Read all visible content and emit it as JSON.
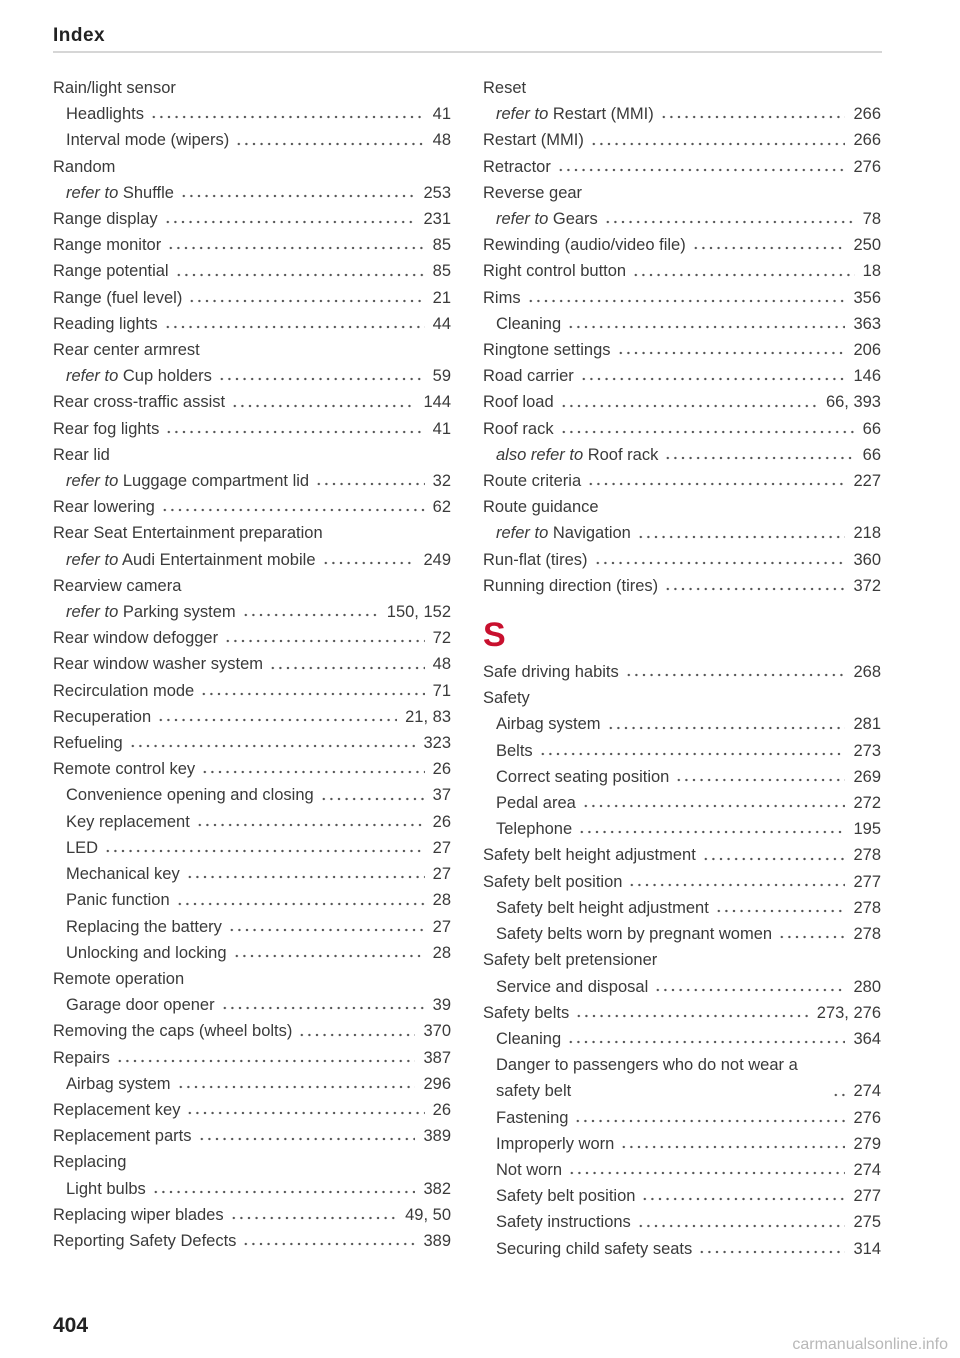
{
  "header": {
    "title": "Index"
  },
  "columns": [
    {
      "sections": [
        {
          "entries": [
            {
              "term": "Rain/light sensor",
              "subentries": [
                {
                  "term": "Headlights",
                  "page": "41"
                },
                {
                  "term": "Interval mode (wipers)",
                  "page": "48"
                }
              ]
            },
            {
              "term": "Random",
              "subentries": [
                {
                  "prefix": "refer to",
                  "term": "Shuffle",
                  "page": "253"
                }
              ]
            },
            {
              "term": "Range display",
              "page": "231"
            },
            {
              "term": "Range monitor",
              "page": "85"
            },
            {
              "term": "Range potential",
              "page": "85"
            },
            {
              "term": "Range (fuel level)",
              "page": "21"
            },
            {
              "term": "Reading lights",
              "page": "44"
            },
            {
              "term": "Rear center armrest",
              "subentries": [
                {
                  "prefix": "refer to",
                  "term": "Cup holders",
                  "page": "59"
                }
              ]
            },
            {
              "term": "Rear cross-traffic assist",
              "page": "144"
            },
            {
              "term": "Rear fog lights",
              "page": "41"
            },
            {
              "term": "Rear lid",
              "subentries": [
                {
                  "prefix": "refer to",
                  "term": "Luggage compartment lid",
                  "page": "32"
                }
              ]
            },
            {
              "term": "Rear lowering",
              "page": "62"
            },
            {
              "term": "Rear Seat Entertainment preparation",
              "subentries": [
                {
                  "prefix": "refer to",
                  "term": "Audi Entertainment mobile",
                  "page": "249"
                }
              ]
            },
            {
              "term": "Rearview camera",
              "subentries": [
                {
                  "prefix": "refer to",
                  "term": "Parking system",
                  "page": "150, 152"
                }
              ]
            },
            {
              "term": "Rear window defogger",
              "page": "72"
            },
            {
              "term": "Rear window washer system",
              "page": "48"
            },
            {
              "term": "Recirculation mode",
              "page": "71"
            },
            {
              "term": "Recuperation",
              "page": "21, 83"
            },
            {
              "term": "Refueling",
              "page": "323"
            },
            {
              "term": "Remote control key",
              "page": "26",
              "subentries": [
                {
                  "term": "Convenience opening and closing",
                  "page": "37"
                },
                {
                  "term": "Key replacement",
                  "page": "26"
                },
                {
                  "term": "LED",
                  "page": "27"
                },
                {
                  "term": "Mechanical key",
                  "page": "27"
                },
                {
                  "term": "Panic function",
                  "page": "28"
                },
                {
                  "term": "Replacing the battery",
                  "page": "27"
                },
                {
                  "term": "Unlocking and locking",
                  "page": "28"
                }
              ]
            },
            {
              "term": "Remote operation",
              "subentries": [
                {
                  "term": "Garage door opener",
                  "page": "39"
                }
              ]
            },
            {
              "term": "Removing the caps (wheel bolts)",
              "page": "370"
            },
            {
              "term": "Repairs",
              "page": "387",
              "subentries": [
                {
                  "term": "Airbag system",
                  "page": "296"
                }
              ]
            },
            {
              "term": "Replacement key",
              "page": "26"
            },
            {
              "term": "Replacement parts",
              "page": "389"
            },
            {
              "term": "Replacing",
              "subentries": [
                {
                  "term": "Light bulbs",
                  "page": "382"
                }
              ]
            },
            {
              "term": "Replacing wiper blades",
              "page": "49, 50"
            },
            {
              "term": "Reporting Safety Defects",
              "page": "389"
            }
          ]
        }
      ]
    },
    {
      "sections": [
        {
          "entries": [
            {
              "term": "Reset",
              "subentries": [
                {
                  "prefix": "refer to",
                  "term": "Restart (MMI)",
                  "page": "266"
                }
              ]
            },
            {
              "term": "Restart (MMI)",
              "page": "266"
            },
            {
              "term": "Retractor",
              "page": "276"
            },
            {
              "term": "Reverse gear",
              "subentries": [
                {
                  "prefix": "refer to",
                  "term": "Gears",
                  "page": "78"
                }
              ]
            },
            {
              "term": "Rewinding (audio/video file)",
              "page": "250"
            },
            {
              "term": "Right control button",
              "page": "18"
            },
            {
              "term": "Rims",
              "page": "356",
              "subentries": [
                {
                  "term": "Cleaning",
                  "page": "363"
                }
              ]
            },
            {
              "term": "Ringtone settings",
              "page": "206"
            },
            {
              "term": "Road carrier",
              "page": "146"
            },
            {
              "term": "Roof load",
              "page": "66, 393"
            },
            {
              "term": "Roof rack",
              "page": "66",
              "subentries": [
                {
                  "prefix": "also refer to",
                  "term": "Roof rack",
                  "page": "66"
                }
              ]
            },
            {
              "term": "Route criteria",
              "page": "227"
            },
            {
              "term": "Route guidance",
              "subentries": [
                {
                  "prefix": "refer to",
                  "term": "Navigation",
                  "page": "218"
                }
              ]
            },
            {
              "term": "Run-flat (tires)",
              "page": "360"
            },
            {
              "term": "Running direction (tires)",
              "page": "372"
            }
          ]
        },
        {
          "letter": "S",
          "entries": [
            {
              "term": "Safe driving habits",
              "page": "268"
            },
            {
              "term": "Safety",
              "subentries": [
                {
                  "term": "Airbag system",
                  "page": "281"
                },
                {
                  "term": "Belts",
                  "page": "273"
                },
                {
                  "term": "Correct seating position",
                  "page": "269"
                },
                {
                  "term": "Pedal area",
                  "page": "272"
                },
                {
                  "term": "Telephone",
                  "page": "195"
                }
              ]
            },
            {
              "term": "Safety belt height adjustment",
              "page": "278"
            },
            {
              "term": "Safety belt position",
              "page": "277",
              "subentries": [
                {
                  "term": "Safety belt height adjustment",
                  "page": "278"
                },
                {
                  "term": "Safety belts worn by pregnant women",
                  "page": "278"
                }
              ]
            },
            {
              "term": "Safety belt pretensioner",
              "subentries": [
                {
                  "term": "Service and disposal",
                  "page": "280"
                }
              ]
            },
            {
              "term": "Safety belts",
              "page": "273, 276",
              "subentries": [
                {
                  "term": "Cleaning",
                  "page": "364"
                },
                {
                  "term": "Danger to passengers who do not wear a safety belt",
                  "page": "274"
                },
                {
                  "term": "Fastening",
                  "page": "276"
                },
                {
                  "term": "Improperly worn",
                  "page": "279"
                },
                {
                  "term": "Not worn",
                  "page": "274"
                },
                {
                  "term": "Safety belt position",
                  "page": "277"
                },
                {
                  "term": "Safety instructions",
                  "page": "275"
                },
                {
                  "term": "Securing child safety seats",
                  "page": "314"
                }
              ]
            }
          ]
        }
      ]
    }
  ],
  "footer": {
    "page_number": "404",
    "watermark": "carmanualsonline.info"
  }
}
